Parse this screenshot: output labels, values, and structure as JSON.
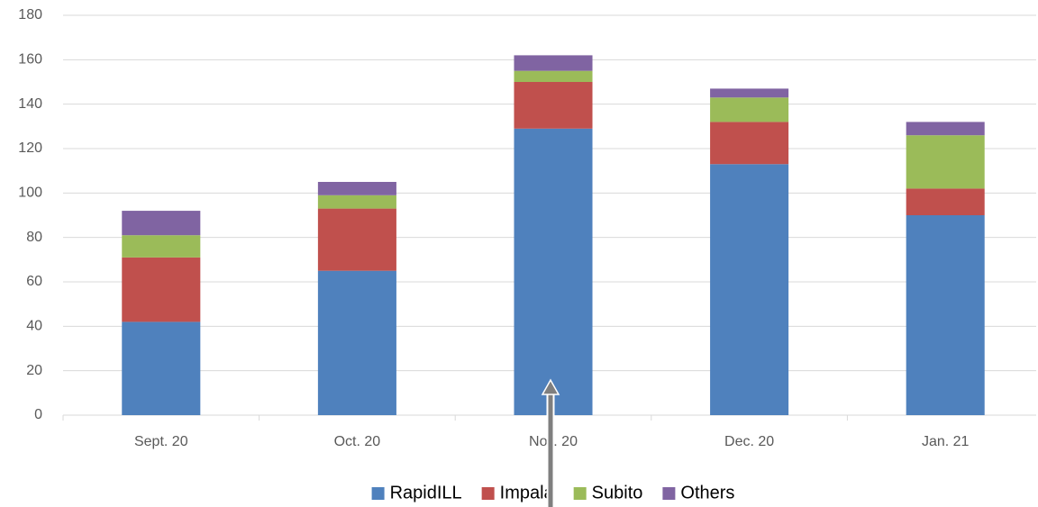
{
  "chart_data": {
    "type": "stacked_bar",
    "categories": [
      "Sept. 20",
      "Oct. 20",
      "Nov. 20",
      "Dec. 20",
      "Jan. 21"
    ],
    "series": [
      {
        "name": "RapidILL",
        "color": "#4f81bd",
        "values": [
          42,
          65,
          129,
          113,
          90
        ]
      },
      {
        "name": "Impala",
        "color": "#c0504d",
        "values": [
          29,
          28,
          21,
          19,
          12
        ]
      },
      {
        "name": "Subito",
        "color": "#9bbb59",
        "values": [
          10,
          6,
          5,
          11,
          24
        ]
      },
      {
        "name": "Others",
        "color": "#8064a2",
        "values": [
          11,
          6,
          7,
          4,
          6
        ]
      }
    ],
    "ylim": [
      0,
      180
    ],
    "yticks": [
      0,
      20,
      40,
      60,
      80,
      100,
      120,
      140,
      160,
      180
    ],
    "grid": true,
    "legend": "bottom"
  }
}
